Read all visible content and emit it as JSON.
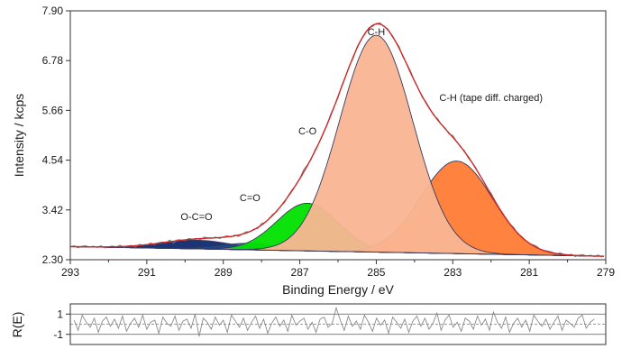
{
  "chart_data": [
    {
      "type": "line",
      "subtype": "xps-peak-fit",
      "xlabel": "Binding Energy / eV",
      "ylabel": "Intensity / kcps",
      "x_reversed": true,
      "xlim": [
        293,
        279
      ],
      "ylim": [
        2.3,
        7.9
      ],
      "xticks": [
        "293",
        "291",
        "289",
        "287",
        "285",
        "283",
        "281",
        "279"
      ],
      "yticks": [
        "2.30",
        "3.42",
        "4.54",
        "5.66",
        "6.78",
        "7.90"
      ],
      "grid": false,
      "legend": "none",
      "background_baseline": [
        [
          293.3,
          2.6
        ],
        [
          279.2,
          2.38
        ]
      ],
      "components": [
        {
          "name": "O-C=O",
          "label": "O-C=O",
          "center": 289.7,
          "height": 2.74,
          "fwhm": 2.2,
          "fill": "#0d2a70",
          "opacity": 0.95
        },
        {
          "name": "C=O",
          "label": "C=O",
          "center": 288.3,
          "height": 2.67,
          "fwhm": 1.8,
          "fill": "#1f4c8f",
          "opacity": 0.75
        },
        {
          "name": "C-O",
          "label": "C-O",
          "center": 286.8,
          "height": 3.57,
          "fwhm": 1.9,
          "fill": "#00e000",
          "opacity": 0.95
        },
        {
          "name": "C-H (tape diff. charged)",
          "label": "C-H (tape diff. charged)",
          "center": 282.9,
          "height": 4.52,
          "fwhm": 2.2,
          "fill": "#ff7b35",
          "opacity": 0.95
        },
        {
          "name": "C-H",
          "label": "C-H",
          "center": 285.0,
          "height": 7.35,
          "fwhm": 2.25,
          "fill": "#f9b593",
          "opacity": 0.95
        }
      ],
      "envelope_color": "#cc2a2a",
      "raw_data_color": "#777777",
      "component_outline_color": "#3a3a5c",
      "residual": {
        "ylabel": "R(E)",
        "yticks": [
          "1",
          "-1"
        ],
        "reference_levels": [
          1,
          0,
          -1
        ],
        "values": [
          0.4,
          -0.6,
          0.9,
          0.2,
          -0.3,
          0.6,
          -0.8,
          0.3,
          0.7,
          -0.2,
          0.5,
          -0.4,
          0.8,
          -0.7,
          0.1,
          0.6,
          -0.3,
          0.9,
          -0.5,
          0.2,
          0.4,
          -0.9,
          0.7,
          0.1,
          -0.2,
          0.8,
          -0.6,
          0.3,
          0.5,
          -0.4,
          1.0,
          -1.2,
          0.6,
          0.2,
          -0.5,
          0.7,
          -0.1,
          0.4,
          -0.8,
          0.9,
          0.3,
          -0.3,
          0.6,
          -0.6,
          0.2,
          0.8,
          -0.4,
          0.5,
          -0.9,
          0.1,
          0.7,
          -0.2,
          0.4,
          -0.7,
          0.9,
          -0.1,
          0.3,
          0.6,
          -0.5,
          0.2,
          -0.8,
          0.5,
          0.7,
          -0.3,
          0.1,
          1.6,
          0.4,
          -0.6,
          0.8,
          -0.2,
          0.3,
          -0.5,
          0.9,
          0.2,
          -0.7,
          0.6,
          -0.1,
          0.4,
          -0.9,
          0.7,
          0.2,
          -0.4,
          0.5,
          -0.8,
          0.3,
          0.8,
          -0.2,
          0.6,
          -0.5,
          0.1,
          1.1,
          -0.6,
          0.4,
          0.9,
          -0.3,
          0.2,
          -0.7,
          0.6,
          0.3,
          -0.5,
          0.8,
          -0.1,
          0.5,
          -0.6,
          1.2,
          0.2,
          -0.4,
          0.7,
          -0.8,
          0.1,
          0.6,
          -0.3,
          0.4,
          -0.7,
          0.9,
          0.3,
          -0.2,
          0.5,
          -0.5,
          0.2,
          0.8,
          -0.6,
          0.4,
          0.1,
          -0.3,
          0.6,
          0.9,
          -0.4,
          0.2,
          0.5
        ]
      }
    }
  ]
}
